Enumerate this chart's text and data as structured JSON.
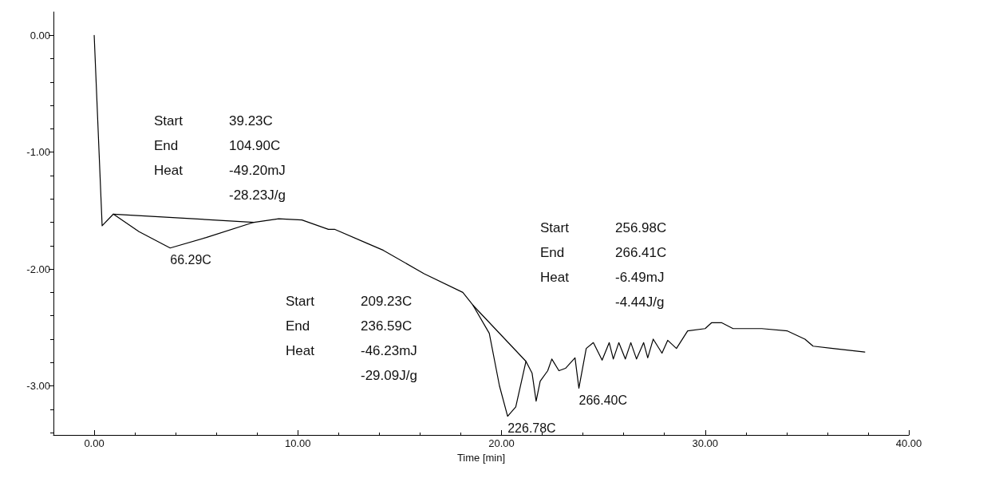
{
  "chart_data": {
    "type": "line",
    "xlabel": "Time [min]",
    "xlim": [
      -2,
      40
    ],
    "ylim": [
      -3.42,
      0.2
    ],
    "xticks": [
      {
        "value": 0,
        "label": "0.00"
      },
      {
        "value": 10,
        "label": "10.00"
      },
      {
        "value": 20,
        "label": "20.00"
      },
      {
        "value": 30,
        "label": "30.00"
      },
      {
        "value": 40,
        "label": "40.00"
      }
    ],
    "yticks": [
      {
        "value": 0,
        "label": "0.00"
      },
      {
        "value": -1,
        "label": "-1.00"
      },
      {
        "value": -2,
        "label": "-2.00"
      },
      {
        "value": -3,
        "label": "-3.00"
      }
    ],
    "grid": false,
    "marker": "none",
    "line_style": "solid",
    "series": [
      {
        "color": "#000000",
        "x": [
          0,
          0.39,
          0.94,
          2.2,
          3.73,
          5.5,
          7.84,
          9.06,
          10.2,
          11.5,
          11.8,
          13.4,
          14.2,
          16.2,
          18.1,
          18.6,
          19.4,
          19.9,
          20.3,
          20.7,
          21.2,
          21.5,
          21.7,
          21.9,
          22.27,
          22.47,
          22.82,
          23.14,
          23.61,
          23.8,
          24.16,
          24.51,
          24.94,
          25.29,
          25.49,
          25.76,
          26.08,
          26.35,
          26.63,
          26.98,
          27.18,
          27.45,
          27.88,
          28.16,
          28.59,
          29.14,
          30.0,
          30.31,
          30.82,
          31.37,
          32.78,
          34.04,
          34.9,
          35.3,
          36.27,
          37.84
        ],
        "values": [
          0,
          -1.63,
          -1.53,
          -1.68,
          -1.82,
          -1.73,
          -1.6,
          -1.57,
          -1.58,
          -1.66,
          -1.66,
          -1.78,
          -1.84,
          -2.04,
          -2.2,
          -2.31,
          -2.55,
          -3.0,
          -3.26,
          -3.18,
          -2.79,
          -2.89,
          -3.13,
          -2.96,
          -2.87,
          -2.77,
          -2.87,
          -2.85,
          -2.76,
          -3.02,
          -2.68,
          -2.63,
          -2.78,
          -2.63,
          -2.77,
          -2.63,
          -2.77,
          -2.63,
          -2.77,
          -2.63,
          -2.76,
          -2.6,
          -2.72,
          -2.61,
          -2.68,
          -2.53,
          -2.51,
          -2.46,
          -2.46,
          -2.51,
          -2.51,
          -2.53,
          -2.6,
          -2.66,
          -2.68,
          -2.71
        ]
      },
      {
        "type": "line",
        "color": "#000000",
        "x": [
          0.94,
          7.84
        ],
        "values": [
          -1.53,
          -1.6
        ]
      },
      {
        "type": "line",
        "color": "#000000",
        "x": [
          18.6,
          21.2
        ],
        "values": [
          -2.31,
          -2.79
        ]
      }
    ],
    "annotations": [
      "Start 39.23C\nEnd 104.90C\nHeat -49.20mJ\n-28.23J/g",
      "Start 209.23C\nEnd 236.59C\nHeat -46.23mJ\n-29.09J/g",
      "Start 256.98C\nEnd 266.41C\nHeat -6.49mJ\n-4.44J/g",
      {
        "text": "66.29C",
        "x": 3.73,
        "y": -1.82
      },
      {
        "text": "226.78C",
        "x": 20.3,
        "y": -3.26
      },
      {
        "text": "266.40C",
        "x": 23.8,
        "y": -3.02
      }
    ]
  }
}
